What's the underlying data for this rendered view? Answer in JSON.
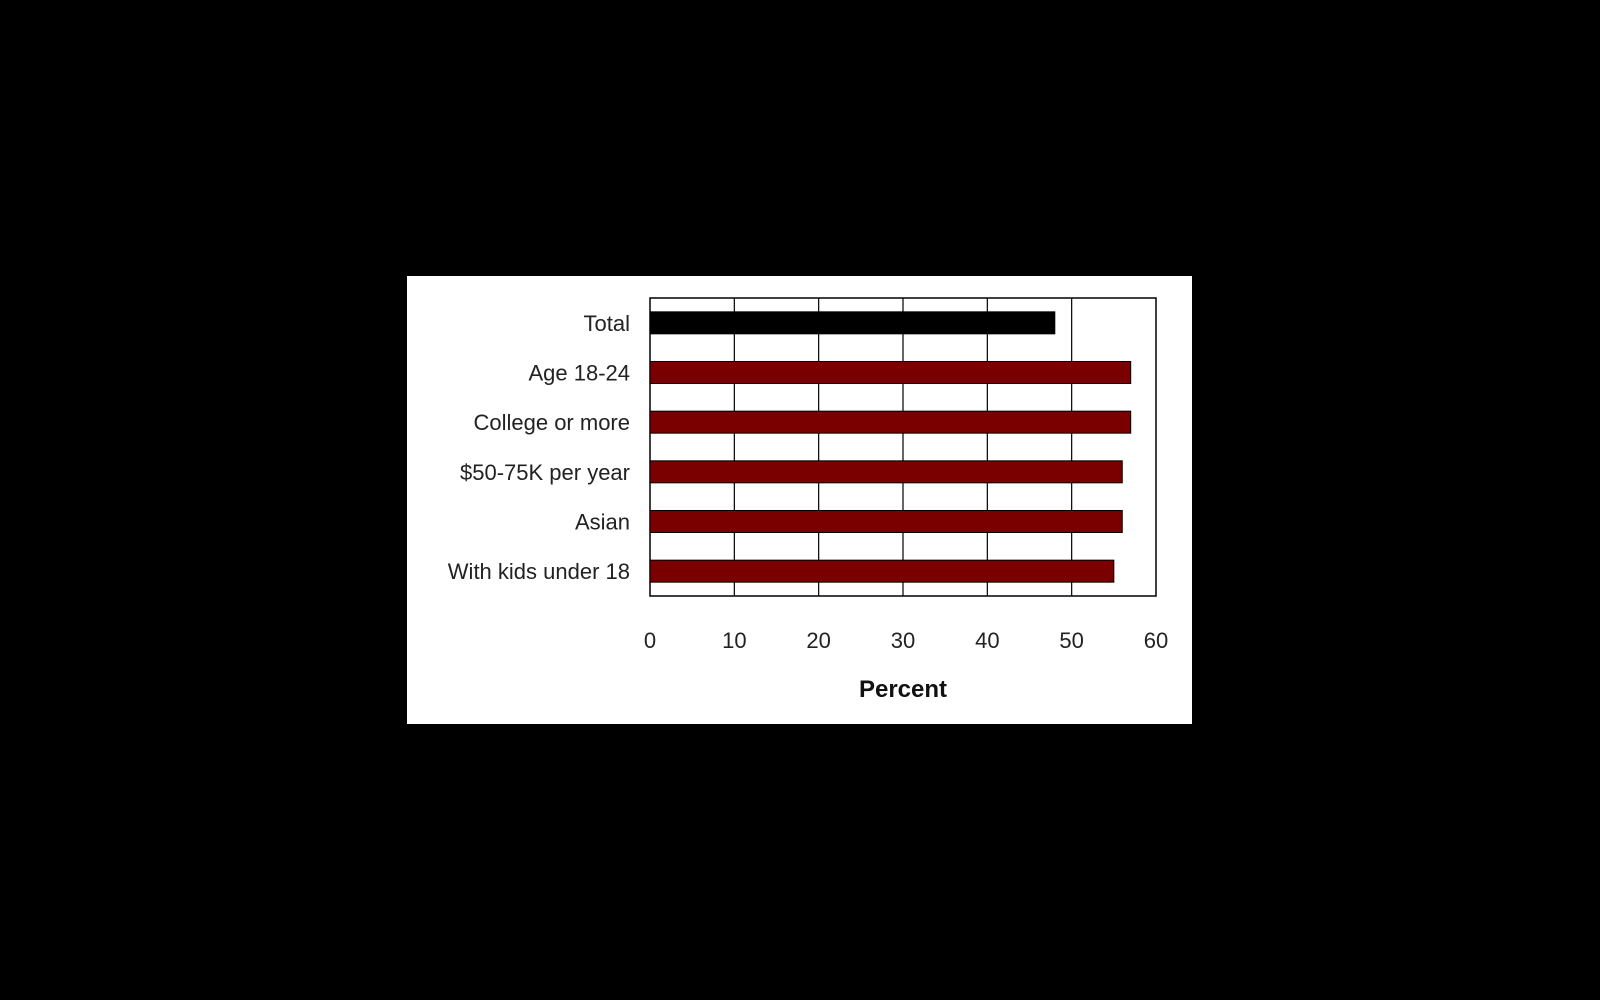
{
  "chart_data": {
    "type": "bar",
    "orientation": "horizontal",
    "categories": [
      "Total",
      "Age 18-24",
      "College or more",
      "$50-75K per year",
      "Asian",
      "With kids under 18"
    ],
    "values": [
      48,
      57,
      57,
      56,
      56,
      55
    ],
    "bar_colors": [
      "#000000",
      "#7a0000",
      "#7a0000",
      "#7a0000",
      "#7a0000",
      "#7a0000"
    ],
    "title": "",
    "xlabel": "Percent",
    "ylabel": "",
    "xlim": [
      0,
      60
    ],
    "xticks": [
      0,
      10,
      20,
      30,
      40,
      50,
      60
    ],
    "grid": "vertical",
    "legend": "none"
  },
  "colors": {
    "background": "#000000",
    "panel": "#ffffff",
    "gridline": "#000000"
  }
}
